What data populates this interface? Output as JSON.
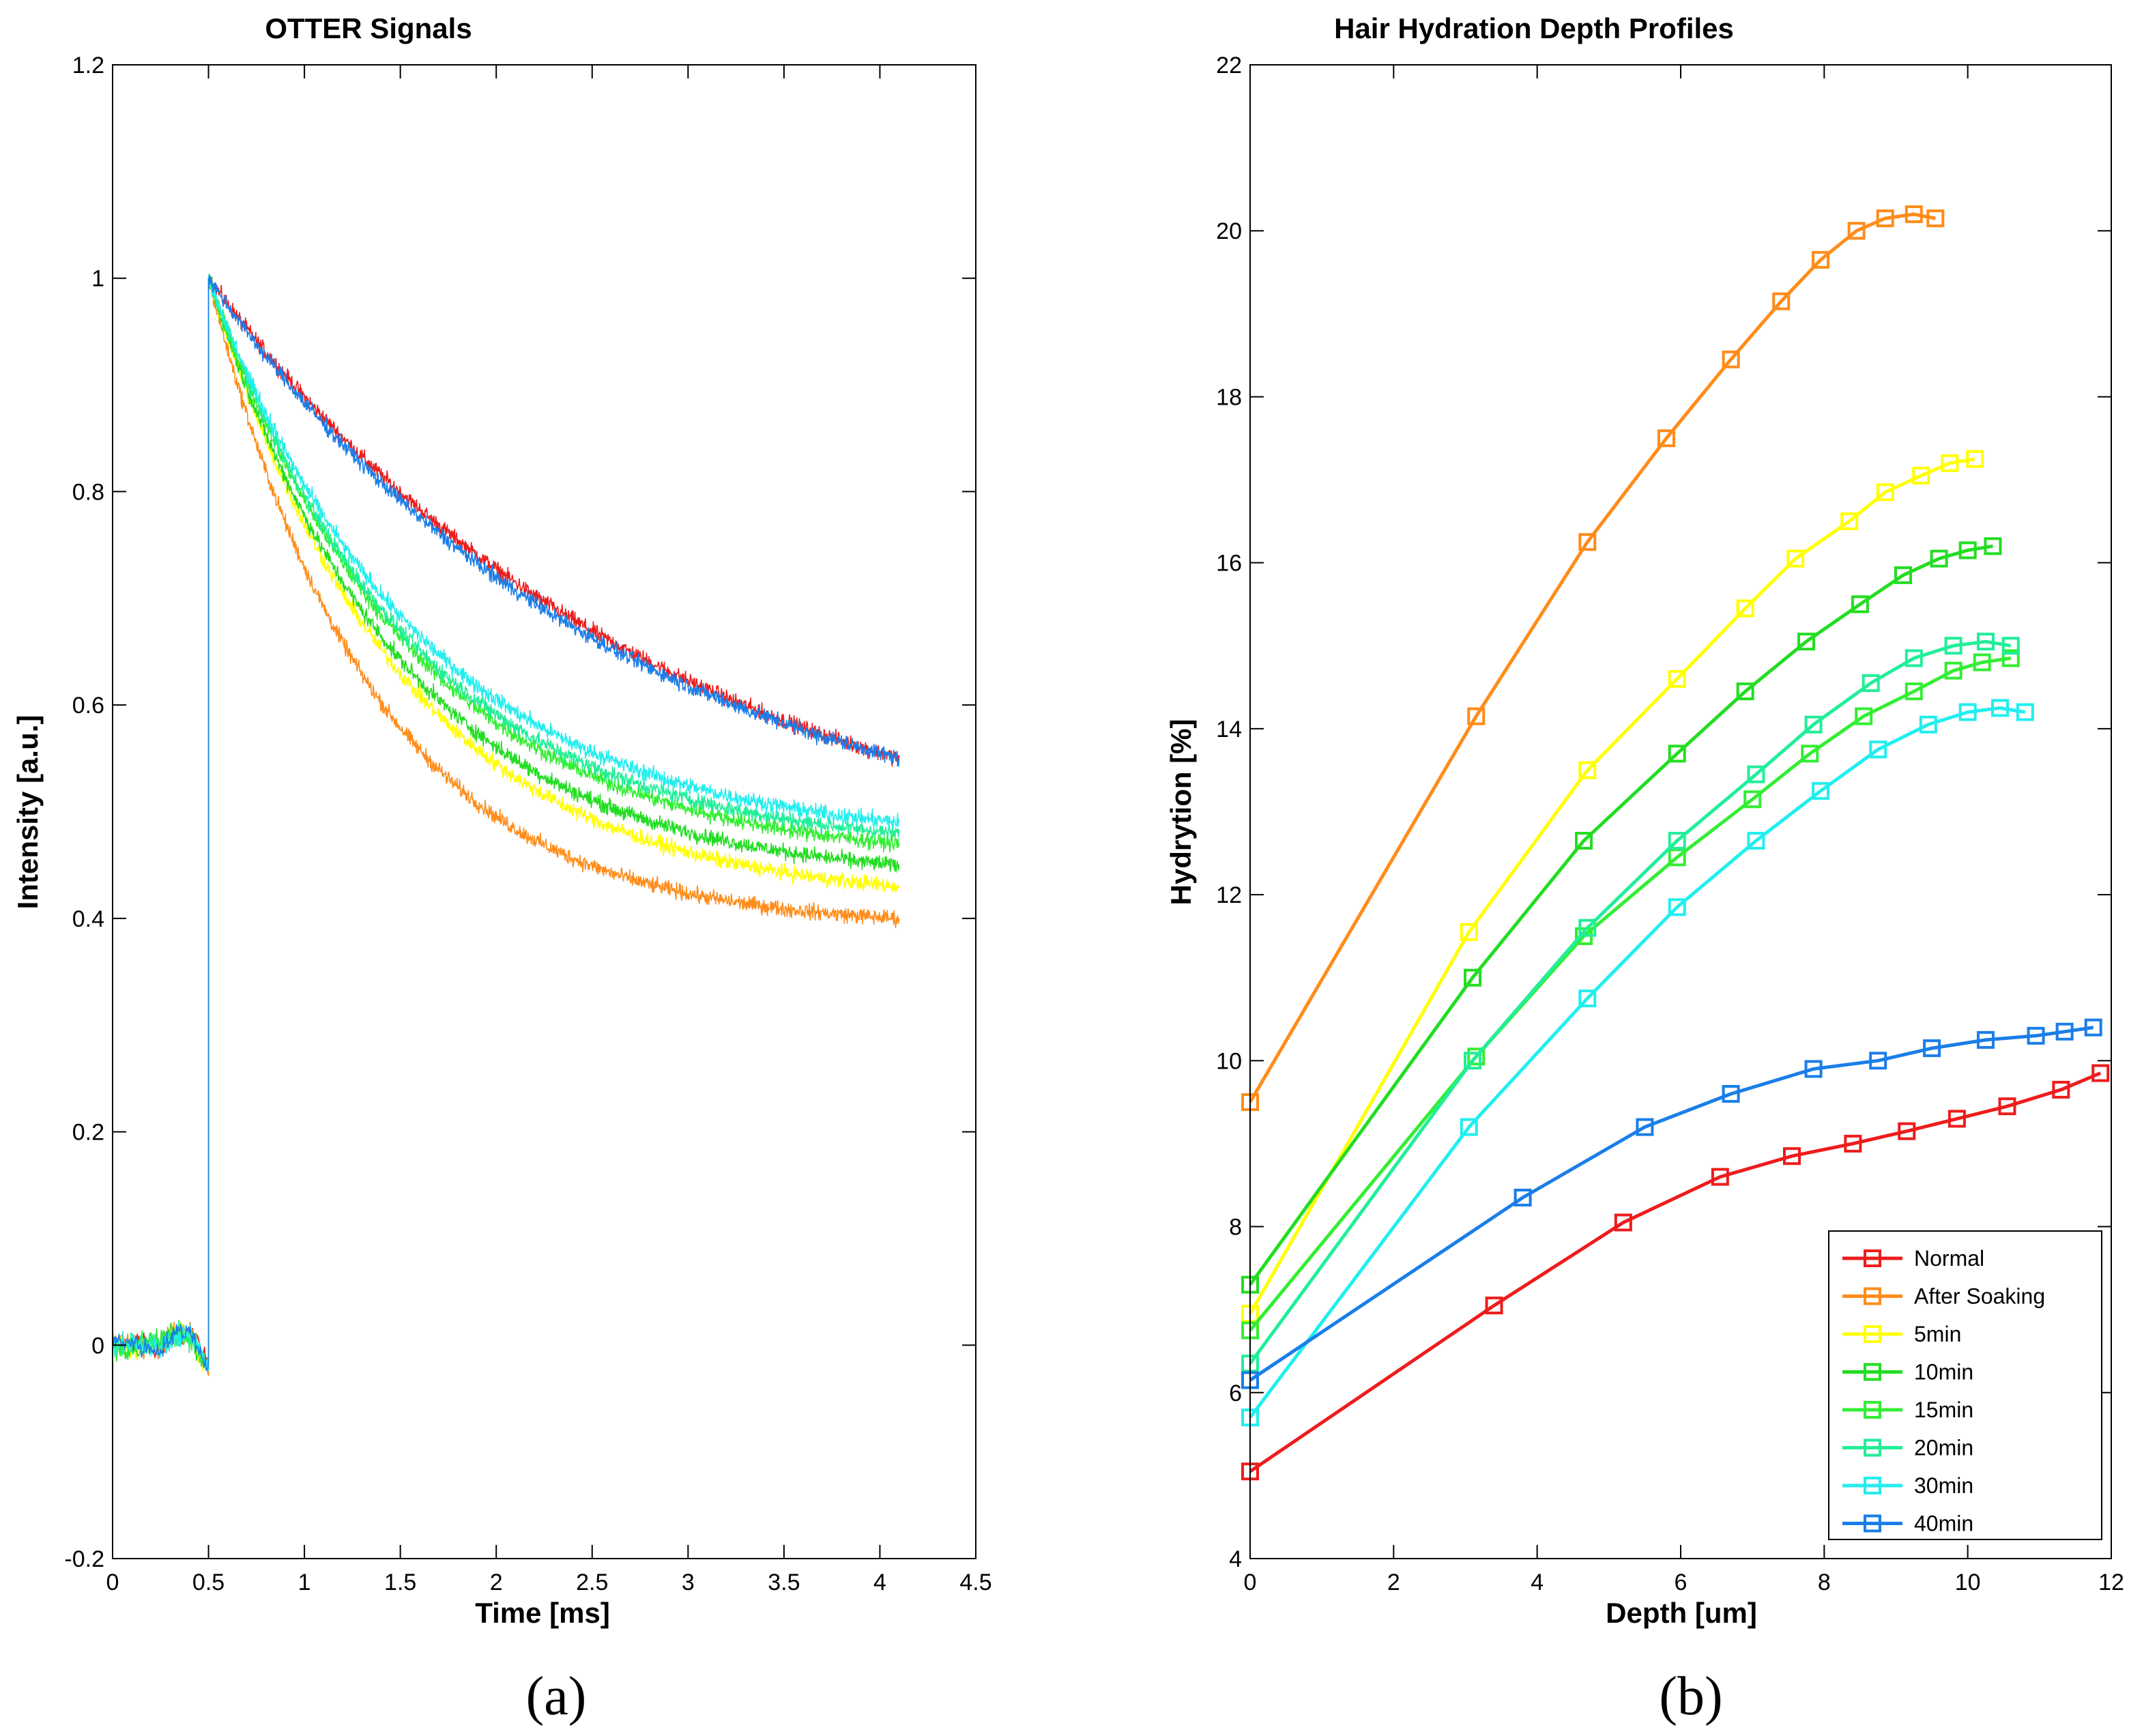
{
  "chart_data": [
    {
      "type": "line",
      "panel_label": "(a)",
      "title": "OTTER Signals",
      "xlabel": "Time [ms]",
      "ylabel": "Intensity [a.u.]",
      "xlim": [
        0,
        4.5
      ],
      "ylim": [
        -0.2,
        1.2
      ],
      "xticks": [
        "0",
        "0.5",
        "1",
        "1.5",
        "2",
        "2.5",
        "3",
        "3.5",
        "4",
        "4.5"
      ],
      "yticks": [
        "-0.2",
        "0",
        "0.2",
        "0.4",
        "0.6",
        "0.8",
        "1",
        "1.2"
      ],
      "grid": false,
      "signal_model": {
        "pulse_onset_ms": 0.5,
        "peak": 1.0,
        "end_ms": 4.1
      },
      "series": [
        {
          "name": "Normal",
          "color": "#ee1c1c",
          "end_value": 0.55,
          "tau_ms": 2.3
        },
        {
          "name": "After Soaking",
          "color": "#ff8c1a",
          "end_value": 0.4,
          "tau_ms": 0.85
        },
        {
          "name": "5min",
          "color": "#ffff00",
          "end_value": 0.43,
          "tau_ms": 1.0
        },
        {
          "name": "10min",
          "color": "#22dd22",
          "end_value": 0.45,
          "tau_ms": 1.0
        },
        {
          "name": "15min",
          "color": "#33ee33",
          "end_value": 0.47,
          "tau_ms": 1.05
        },
        {
          "name": "20min",
          "color": "#22ee99",
          "end_value": 0.48,
          "tau_ms": 1.05
        },
        {
          "name": "30min",
          "color": "#22eeee",
          "end_value": 0.49,
          "tau_ms": 1.1
        },
        {
          "name": "40min",
          "color": "#1a7ee8",
          "end_value": 0.55,
          "tau_ms": 2.1
        }
      ]
    },
    {
      "type": "line",
      "panel_label": "(b)",
      "title": "Hair Hydration Depth Profiles",
      "xlabel": "Depth [um]",
      "ylabel": "Hydrytion [%]",
      "xlim": [
        0,
        12
      ],
      "ylim": [
        4,
        22
      ],
      "xticks": [
        "0",
        "2",
        "4",
        "6",
        "8",
        "10",
        "12"
      ],
      "yticks": [
        "4",
        "6",
        "8",
        "10",
        "12",
        "14",
        "16",
        "18",
        "20",
        "22"
      ],
      "grid": false,
      "legend_position": "bottom-right",
      "series": [
        {
          "name": "Normal",
          "color": "#ee1c1c",
          "x": [
            0,
            3.4,
            5.2,
            6.55,
            7.55,
            8.4,
            9.15,
            9.85,
            10.55,
            11.3,
            11.85
          ],
          "y": [
            5.05,
            7.05,
            8.05,
            8.6,
            8.85,
            9.0,
            9.15,
            9.3,
            9.45,
            9.65,
            9.85
          ]
        },
        {
          "name": "After Soaking",
          "color": "#ff8c1a",
          "x": [
            0,
            3.15,
            4.7,
            5.8,
            6.7,
            7.4,
            7.95,
            8.45,
            8.85,
            9.25,
            9.55
          ],
          "y": [
            9.5,
            14.15,
            16.25,
            17.5,
            18.45,
            19.15,
            19.65,
            20.0,
            20.15,
            20.2,
            20.15
          ]
        },
        {
          "name": "5min",
          "color": "#ffff00",
          "x": [
            0,
            3.05,
            4.7,
            5.95,
            6.9,
            7.6,
            8.35,
            8.85,
            9.35,
            9.75,
            10.1
          ],
          "y": [
            6.95,
            11.55,
            13.5,
            14.6,
            15.45,
            16.05,
            16.5,
            16.85,
            17.05,
            17.2,
            17.25
          ]
        },
        {
          "name": "10min",
          "color": "#22dd22",
          "x": [
            0,
            3.1,
            4.65,
            5.95,
            6.9,
            7.75,
            8.5,
            9.1,
            9.6,
            10.0,
            10.35
          ],
          "y": [
            7.3,
            11.0,
            12.65,
            13.7,
            14.45,
            15.05,
            15.5,
            15.85,
            16.05,
            16.15,
            16.2
          ]
        },
        {
          "name": "15min",
          "color": "#33ee33",
          "x": [
            0,
            3.15,
            4.65,
            5.95,
            7.0,
            7.8,
            8.55,
            9.25,
            9.8,
            10.2,
            10.6
          ],
          "y": [
            6.75,
            10.05,
            11.5,
            12.45,
            13.15,
            13.7,
            14.15,
            14.45,
            14.7,
            14.8,
            14.85
          ]
        },
        {
          "name": "20min",
          "color": "#22ee99",
          "x": [
            0,
            3.1,
            4.7,
            5.95,
            7.05,
            7.85,
            8.65,
            9.25,
            9.8,
            10.25,
            10.6
          ],
          "y": [
            6.35,
            10.0,
            11.6,
            12.65,
            13.45,
            14.05,
            14.55,
            14.85,
            15.0,
            15.05,
            15.0
          ]
        },
        {
          "name": "30min",
          "color": "#22eeee",
          "x": [
            0,
            3.05,
            4.7,
            5.95,
            7.05,
            7.95,
            8.75,
            9.45,
            10.0,
            10.45,
            10.8
          ],
          "y": [
            5.7,
            9.2,
            10.75,
            11.85,
            12.65,
            13.25,
            13.75,
            14.05,
            14.2,
            14.25,
            14.2
          ]
        },
        {
          "name": "40min",
          "color": "#1a7ee8",
          "x": [
            0,
            3.8,
            5.5,
            6.7,
            7.85,
            8.75,
            9.5,
            10.25,
            10.95,
            11.35,
            11.75
          ],
          "y": [
            6.15,
            8.35,
            9.2,
            9.6,
            9.9,
            10.0,
            10.15,
            10.25,
            10.3,
            10.35,
            10.4
          ]
        }
      ]
    }
  ]
}
